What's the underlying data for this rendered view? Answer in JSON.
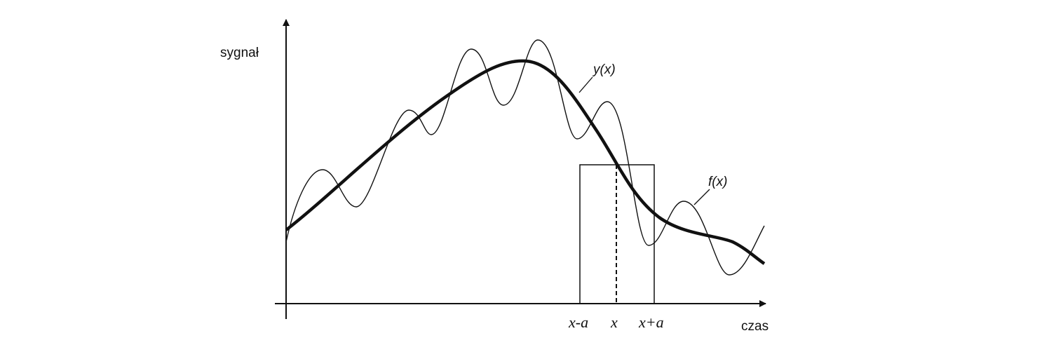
{
  "labels": {
    "y_axis": "sygnał",
    "x_axis": "czas",
    "smooth_curve": "y(x)",
    "signal_curve": "f(x)",
    "window_left": "x-a",
    "window_center": "x",
    "window_right": "x+a"
  }
}
